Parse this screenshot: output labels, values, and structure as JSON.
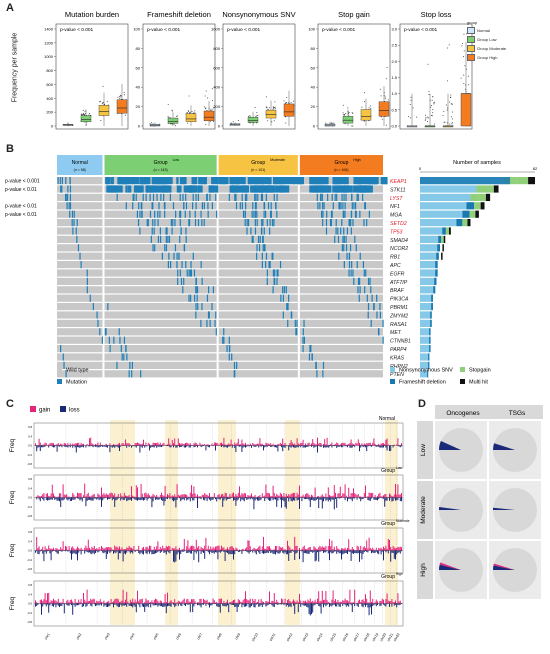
{
  "panels": {
    "a": {
      "label": "A",
      "ylabel": "Frequency per sample",
      "legend": {
        "title": "group",
        "items": [
          "Normal",
          "Group Low",
          "Group Moderate",
          "Group High"
        ],
        "colors": [
          "#cfe8ff",
          "#7ccf72",
          "#f6c343",
          "#f47c20"
        ]
      },
      "plots": [
        {
          "title": "Mutation burden",
          "pvalue": "p-value < 0.001",
          "yticks": [
            "0",
            "200",
            "400",
            "600",
            "800",
            "1000",
            "1200",
            "1400"
          ],
          "ymax": 1400,
          "medians": [
            15,
            95,
            210,
            260
          ],
          "q1": [
            8,
            60,
            150,
            185
          ],
          "q3": [
            25,
            150,
            300,
            380
          ]
        },
        {
          "title": "Frameshift deletion",
          "pvalue": "p-value < 0.001",
          "yticks": [
            "0",
            "20",
            "40",
            "60",
            "80",
            "100"
          ],
          "ymax": 110,
          "medians": [
            1,
            5,
            8,
            10
          ],
          "q1": [
            0,
            3,
            5,
            6
          ],
          "q3": [
            2,
            9,
            14,
            17
          ]
        },
        {
          "title": "Nonsynonymous SNV",
          "pvalue": "p-value < 0.001",
          "yticks": [
            "0",
            "200",
            "400",
            "600",
            "800",
            "1000"
          ],
          "ymax": 1100,
          "medians": [
            15,
            60,
            130,
            160
          ],
          "q1": [
            8,
            40,
            90,
            110
          ],
          "q3": [
            25,
            100,
            180,
            250
          ]
        },
        {
          "title": "Stop gain",
          "pvalue": "p-value < 0.001",
          "yticks": [
            "0",
            "20",
            "40",
            "60",
            "80",
            "100"
          ],
          "ymax": 100,
          "medians": [
            1,
            6,
            10,
            16
          ],
          "q1": [
            0,
            3,
            6,
            10
          ],
          "q3": [
            2,
            10,
            17,
            25
          ]
        },
        {
          "title": "Stop loss",
          "pvalue": "p-value < 0.001",
          "yticks": [
            "0.0",
            "0.5",
            "1.0",
            "1.5",
            "2.0",
            "2.5",
            "3.0"
          ],
          "ymax": 3,
          "medians": [
            0,
            0,
            0,
            1
          ],
          "q1": [
            0,
            0,
            0,
            0
          ],
          "q3": [
            0,
            0,
            0,
            1
          ]
        }
      ]
    },
    "b": {
      "label": "B",
      "groups": [
        {
          "name": "Normal",
          "sup": "",
          "n": "(n = 58)",
          "color": "#8fcbf0"
        },
        {
          "name": "Group",
          "sup": "Low",
          "n": "(n = 143)",
          "color": "#7ccf72"
        },
        {
          "name": "Group",
          "sup": "Moderate",
          "n": "(n = 101)",
          "color": "#f6c343"
        },
        {
          "name": "Group",
          "sup": "High",
          "n": "(n = 106)",
          "color": "#f47c20"
        }
      ],
      "pvalues": [
        "p-value < 0.001",
        "p-value < 0.01",
        "",
        "p-value < 0.01",
        "p-value < 0.01"
      ],
      "genes": [
        "KEAP1",
        "STK11",
        "LYST",
        "NF1",
        "MGA",
        "SETD2",
        "TP53",
        "SMAD4",
        "NCOR2",
        "RB1",
        "APC",
        "EGFR",
        "ATF7IP",
        "BRAF",
        "PIK3CA",
        "PBRM1",
        "ZMYM2",
        "RASA1",
        "MET",
        "CTNNB1",
        "PARP4",
        "KRAS",
        "RHPN2",
        "PTEN"
      ],
      "red_genes": [
        "KEAP1",
        "LYST",
        "SETD2",
        "TP53"
      ],
      "bar_title": "Number of samples",
      "bar_ticks": [
        "0",
        "82"
      ],
      "bar_values": [
        82,
        56,
        50,
        46,
        42,
        36,
        22,
        18,
        17,
        16,
        15,
        15,
        14,
        13,
        11,
        11,
        10,
        10,
        9,
        9,
        9,
        8,
        8,
        7
      ],
      "legend": [
        "Wild type",
        "Mutation",
        "Nonsynonymous SNV",
        "Stopgain",
        "Frameshift deletion",
        "Multi hit"
      ],
      "colors": {
        "wild": "#c8c8c8",
        "mut": "#1f7fb8",
        "snv": "#86c8e8",
        "stopgain": "#92cf7a",
        "frameshift": "#1878b0",
        "multi": "#111111"
      }
    },
    "c": {
      "label": "C",
      "legend": [
        "gain",
        "loss"
      ],
      "gain_color": "#e6247a",
      "loss_color": "#1b2a78",
      "ylabel": "Freq",
      "yticks": [
        "0.8",
        "0.4",
        "0.0",
        "-0.4",
        "-0.8"
      ],
      "rows": [
        {
          "name": "Normal",
          "sup": ""
        },
        {
          "name": "Group",
          "sup": "Low"
        },
        {
          "name": "Group",
          "sup": "Moderate"
        },
        {
          "name": "Group",
          "sup": "High"
        }
      ],
      "chromosomes": [
        "chr1",
        "chr2",
        "chr3",
        "chr4",
        "chr5",
        "chr6",
        "chr7",
        "chr8",
        "chr9",
        "chr10",
        "chr11",
        "chr12",
        "chr13",
        "chr14",
        "chr15",
        "chr16",
        "chr17",
        "chr18",
        "chr19",
        "chr20",
        "chr21",
        "chr22"
      ]
    },
    "d": {
      "label": "D",
      "columns": [
        "Oncogenes",
        "TSGs"
      ],
      "rows": [
        "Low",
        "Moderate",
        "High"
      ]
    }
  }
}
